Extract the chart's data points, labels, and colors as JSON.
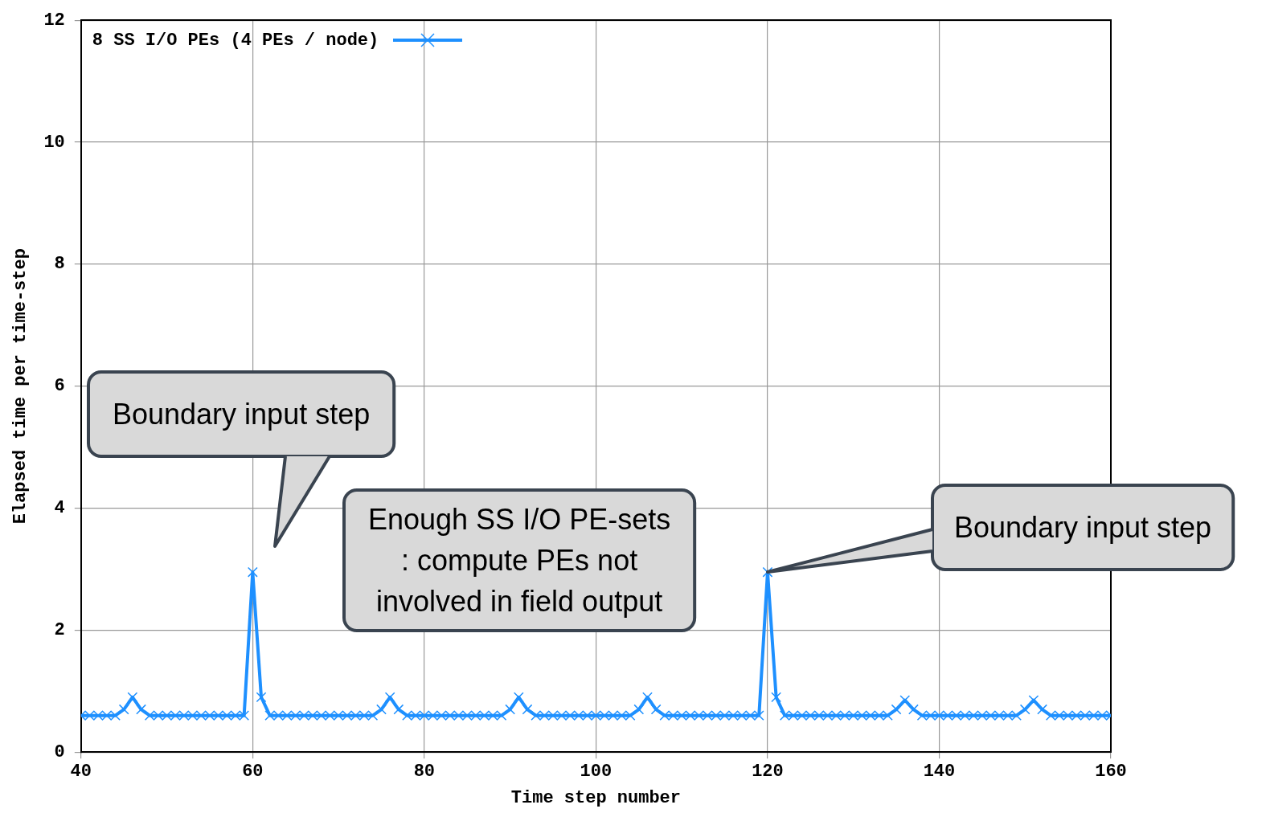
{
  "chart_data": {
    "type": "line",
    "xlabel": "Time step number",
    "ylabel": "Elapsed time per time-step",
    "x": [
      40,
      41,
      42,
      43,
      44,
      45,
      46,
      47,
      48,
      49,
      50,
      51,
      52,
      53,
      54,
      55,
      56,
      57,
      58,
      59,
      60,
      61,
      62,
      63,
      64,
      65,
      66,
      67,
      68,
      69,
      70,
      71,
      72,
      73,
      74,
      75,
      76,
      77,
      78,
      79,
      80,
      81,
      82,
      83,
      84,
      85,
      86,
      87,
      88,
      89,
      90,
      91,
      92,
      93,
      94,
      95,
      96,
      97,
      98,
      99,
      100,
      101,
      102,
      103,
      104,
      105,
      106,
      107,
      108,
      109,
      110,
      111,
      112,
      113,
      114,
      115,
      116,
      117,
      118,
      119,
      120,
      121,
      122,
      123,
      124,
      125,
      126,
      127,
      128,
      129,
      130,
      131,
      132,
      133,
      134,
      135,
      136,
      137,
      138,
      139,
      140,
      141,
      142,
      143,
      144,
      145,
      146,
      147,
      148,
      149,
      150,
      151,
      152,
      153,
      154,
      155,
      156,
      157,
      158,
      159,
      160
    ],
    "series": [
      {
        "name": "8 SS I/O PEs (4 PEs / node)",
        "color": "#1e90ff",
        "values": [
          0.6,
          0.6,
          0.6,
          0.6,
          0.6,
          0.7,
          0.9,
          0.7,
          0.6,
          0.6,
          0.6,
          0.6,
          0.6,
          0.6,
          0.6,
          0.6,
          0.6,
          0.6,
          0.6,
          0.6,
          2.95,
          0.9,
          0.6,
          0.6,
          0.6,
          0.6,
          0.6,
          0.6,
          0.6,
          0.6,
          0.6,
          0.6,
          0.6,
          0.6,
          0.6,
          0.7,
          0.9,
          0.7,
          0.6,
          0.6,
          0.6,
          0.6,
          0.6,
          0.6,
          0.6,
          0.6,
          0.6,
          0.6,
          0.6,
          0.6,
          0.7,
          0.9,
          0.7,
          0.6,
          0.6,
          0.6,
          0.6,
          0.6,
          0.6,
          0.6,
          0.6,
          0.6,
          0.6,
          0.6,
          0.6,
          0.7,
          0.9,
          0.7,
          0.6,
          0.6,
          0.6,
          0.6,
          0.6,
          0.6,
          0.6,
          0.6,
          0.6,
          0.6,
          0.6,
          0.6,
          2.95,
          0.9,
          0.6,
          0.6,
          0.6,
          0.6,
          0.6,
          0.6,
          0.6,
          0.6,
          0.6,
          0.6,
          0.6,
          0.6,
          0.6,
          0.7,
          0.85,
          0.7,
          0.6,
          0.6,
          0.6,
          0.6,
          0.6,
          0.6,
          0.6,
          0.6,
          0.6,
          0.6,
          0.6,
          0.6,
          0.7,
          0.85,
          0.7,
          0.6,
          0.6,
          0.6,
          0.6,
          0.6,
          0.6,
          0.6,
          0.6
        ]
      }
    ],
    "xlim": [
      40,
      160
    ],
    "xticks": [
      40,
      60,
      80,
      100,
      120,
      140,
      160
    ],
    "ylim": [
      0,
      12
    ],
    "yticks": [
      0,
      2,
      4,
      6,
      8,
      10,
      12
    ],
    "grid": true,
    "legend": "top left",
    "marker": "cross",
    "line_style": "solid",
    "annotations": [
      "Boundary input step",
      "Enough SS I/O PE-sets : compute PEs not involved in field output",
      {
        "text": "Boundary input step",
        "x": 120,
        "y": 2.95
      }
    ]
  }
}
